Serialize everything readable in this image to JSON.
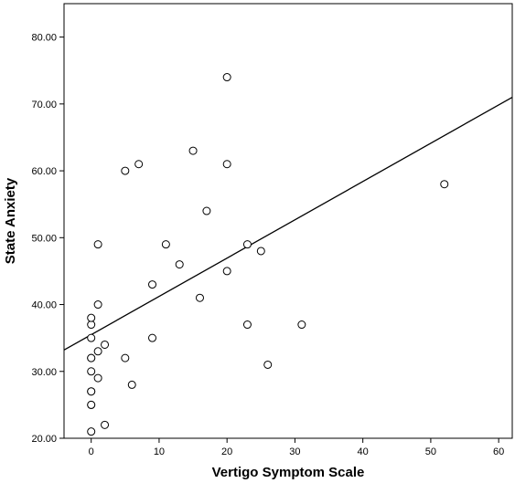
{
  "chart_data": {
    "type": "scatter",
    "xlabel": "Vertigo Symptom Scale",
    "ylabel": "State Anxiety",
    "xlim": [
      -4,
      62
    ],
    "ylim": [
      20,
      85
    ],
    "x_ticks": [
      0,
      10,
      20,
      30,
      40,
      50,
      60
    ],
    "y_ticks": [
      20,
      30,
      40,
      50,
      60,
      70,
      80
    ],
    "x_tick_labels": [
      "0",
      "10",
      "20",
      "30",
      "40",
      "50",
      "60"
    ],
    "y_tick_labels": [
      "20.00",
      "30.00",
      "40.00",
      "50.00",
      "60.00",
      "70.00",
      "80.00"
    ],
    "grid": false,
    "points": [
      {
        "x": 0,
        "y": 21
      },
      {
        "x": 0,
        "y": 25
      },
      {
        "x": 0,
        "y": 25
      },
      {
        "x": 0,
        "y": 27
      },
      {
        "x": 0,
        "y": 27
      },
      {
        "x": 0,
        "y": 30
      },
      {
        "x": 0,
        "y": 32
      },
      {
        "x": 0,
        "y": 32
      },
      {
        "x": 0,
        "y": 35
      },
      {
        "x": 0,
        "y": 37
      },
      {
        "x": 0,
        "y": 38
      },
      {
        "x": 1,
        "y": 29
      },
      {
        "x": 1,
        "y": 33
      },
      {
        "x": 1,
        "y": 40
      },
      {
        "x": 1,
        "y": 49
      },
      {
        "x": 2,
        "y": 22
      },
      {
        "x": 2,
        "y": 34
      },
      {
        "x": 5,
        "y": 32
      },
      {
        "x": 5,
        "y": 60
      },
      {
        "x": 6,
        "y": 28
      },
      {
        "x": 7,
        "y": 61
      },
      {
        "x": 9,
        "y": 35
      },
      {
        "x": 9,
        "y": 43
      },
      {
        "x": 11,
        "y": 49
      },
      {
        "x": 13,
        "y": 46
      },
      {
        "x": 15,
        "y": 63
      },
      {
        "x": 16,
        "y": 41
      },
      {
        "x": 17,
        "y": 54
      },
      {
        "x": 20,
        "y": 74
      },
      {
        "x": 20,
        "y": 61
      },
      {
        "x": 20,
        "y": 45
      },
      {
        "x": 23,
        "y": 49
      },
      {
        "x": 23,
        "y": 37
      },
      {
        "x": 25,
        "y": 48
      },
      {
        "x": 26,
        "y": 31
      },
      {
        "x": 31,
        "y": 37
      },
      {
        "x": 52,
        "y": 58
      }
    ],
    "fit_line": {
      "x": [
        -4,
        62
      ],
      "y": [
        33.2,
        71.0
      ]
    },
    "colors": {
      "marker_stroke": "#000000",
      "marker_fill": "#ffffff",
      "line": "#000000",
      "background": "#ffffff"
    }
  }
}
